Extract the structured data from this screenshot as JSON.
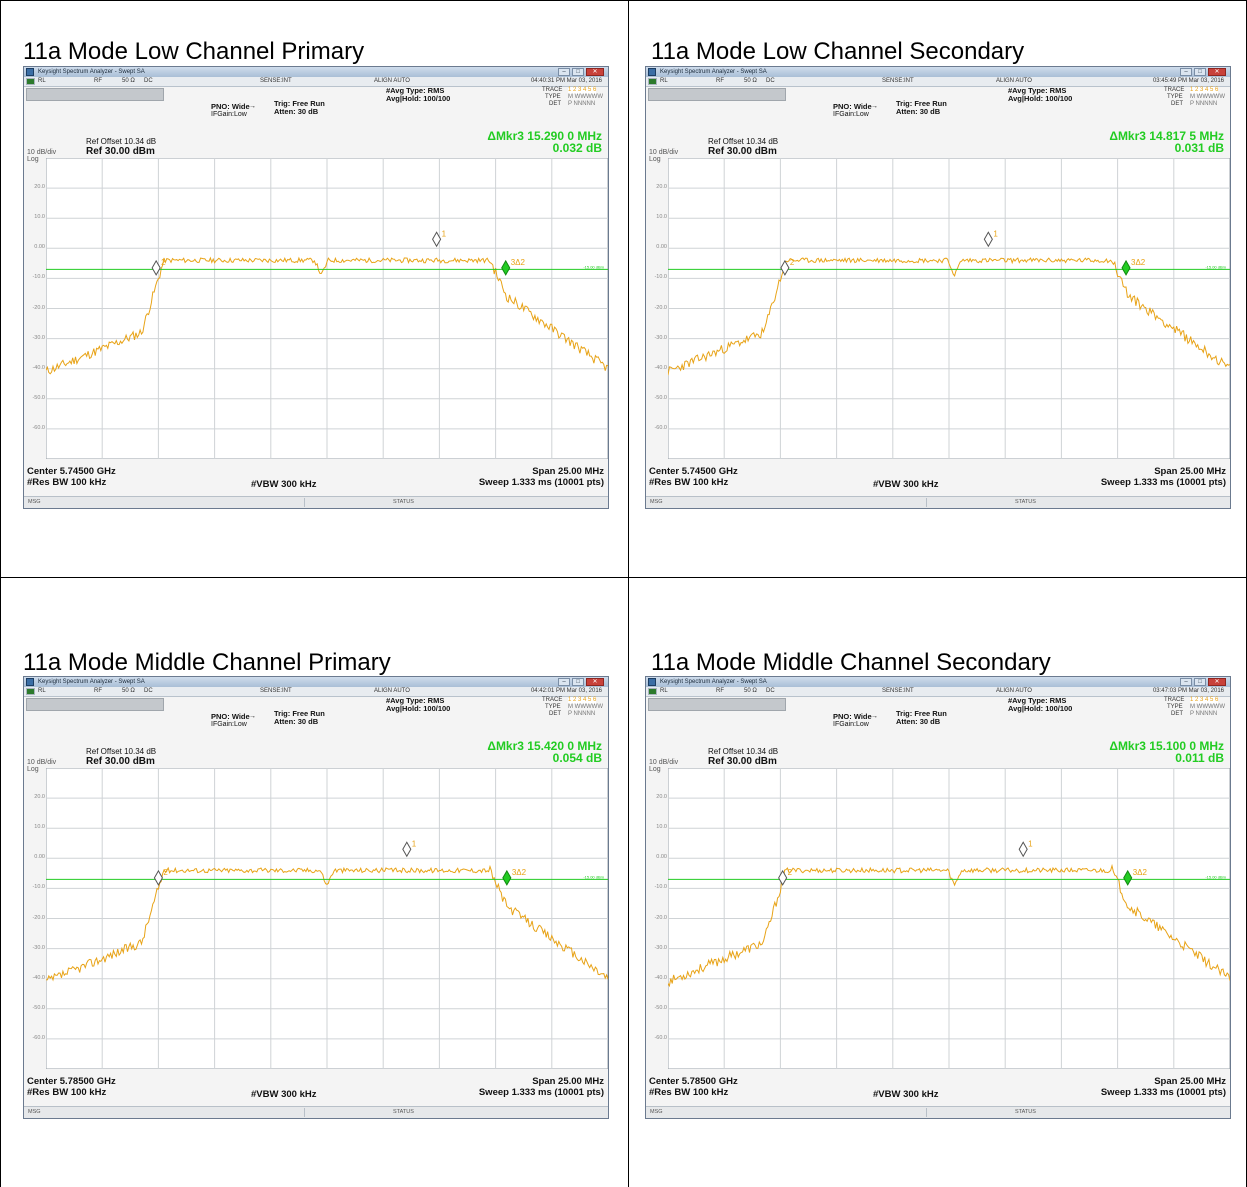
{
  "panels": [
    {
      "title": "11a Mode Low Channel Primary",
      "window_title": "Keysight Spectrum Analyzer - Swept SA",
      "timestamp": "04:40:31 PM Mar 03, 2016",
      "marker_freq": "ΔMkr3 15.290 0 MHz",
      "marker_val": "0.032 dB",
      "center": "Center 5.74500 GHz",
      "dip_x": 0.49,
      "marker_positions": [
        0.695,
        0.196,
        0.818
      ],
      "seed": 11
    },
    {
      "title": "11a Mode Low Channel Secondary",
      "window_title": "Keysight Spectrum Analyzer - Swept SA",
      "timestamp": "03:45:49 PM Mar 03, 2016",
      "marker_freq": "ΔMkr3 14.817 5 MHz",
      "marker_val": "0.031 dB",
      "center": "Center 5.74500 GHz",
      "dip_x": 0.51,
      "marker_positions": [
        0.57,
        0.208,
        0.815
      ],
      "seed": 23
    },
    {
      "title": "11a Mode Middle Channel Primary",
      "window_title": "Keysight Spectrum Analyzer - Swept SA",
      "timestamp": "04:42:01 PM Mar 03, 2016",
      "marker_freq": "ΔMkr3 15.420 0 MHz",
      "marker_val": "0.054 dB",
      "center": "Center 5.78500 GHz",
      "dip_x": 0.5,
      "marker_positions": [
        0.642,
        0.2,
        0.82
      ],
      "seed": 37
    },
    {
      "title": "11a Mode Middle Channel Secondary",
      "window_title": "Keysight Spectrum Analyzer - Swept SA",
      "timestamp": "03:47:03 PM Mar 03, 2016",
      "marker_freq": "ΔMkr3 15.100 0 MHz",
      "marker_val": "0.011 dB",
      "center": "Center 5.78500 GHz",
      "dip_x": 0.51,
      "marker_positions": [
        0.632,
        0.204,
        0.818
      ],
      "seed": 53
    }
  ],
  "common": {
    "rl": "RL",
    "rf": "RF",
    "ohm": "50 Ω",
    "dc": "DC",
    "sense": "SENSE:INT",
    "align": "ALIGN AUTO",
    "avg_type": "#Avg Type: RMS",
    "avg_hold": "Avg|Hold: 100/100",
    "trace_label": "TRACE",
    "trace_digits": "1 2 3 4 5 6",
    "type_label": "TYPE",
    "type_val": "M WWWWW",
    "det_label": "DET",
    "det_val": "P NNNNN",
    "pno": "PNO: Wide",
    "ifgain": "IFGain:Low",
    "trig": "Trig: Free Run",
    "atten": "Atten: 30 dB",
    "ref_offset": "Ref Offset 10.34 dB",
    "ref_level": "Ref 30.00 dBm",
    "div": "10 dB/div",
    "log": "Log",
    "span": "Span 25.00 MHz",
    "res_bw": "#Res BW 100 kHz",
    "vbw": "#VBW 300 kHz",
    "sweep": "Sweep  1.333 ms (10001 pts)",
    "msg": "MSG",
    "status": "STATUS",
    "y_ticks": [
      "20.0",
      "10.0",
      "0.00",
      "-10.0",
      "-20.0",
      "-30.0",
      "-40.0",
      "-50.0",
      "-60.0"
    ],
    "marker_labels": [
      "1",
      "2",
      "3Δ2"
    ],
    "line_label": "-15.00 dBm"
  },
  "colors": {
    "trace": "#e8a317",
    "marker_green": "#22cc22",
    "grid": "#cfd3d6",
    "window_border": "#6b7a8f"
  }
}
